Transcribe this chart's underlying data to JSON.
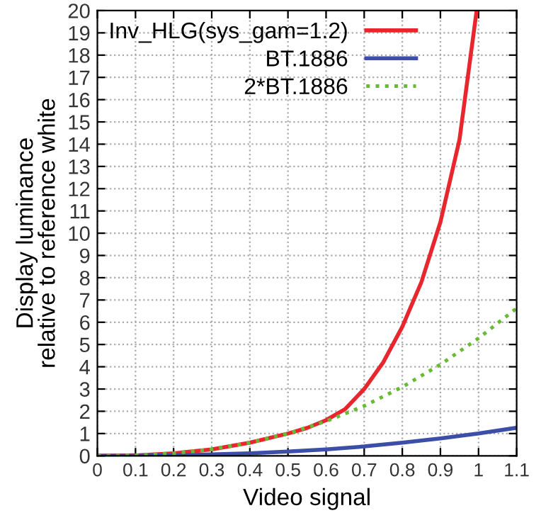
{
  "chart_data": {
    "type": "line",
    "xlabel": "Video signal",
    "ylabel": "Display luminance\nrelative to reference white",
    "xlim": [
      0,
      1.1
    ],
    "ylim": [
      0,
      20
    ],
    "xticks": [
      0,
      0.1,
      0.2,
      0.3,
      0.4,
      0.5,
      0.6,
      0.7,
      0.8,
      0.9,
      1,
      1.1
    ],
    "yticks": [
      0,
      1,
      2,
      3,
      4,
      5,
      6,
      7,
      8,
      9,
      10,
      11,
      12,
      13,
      14,
      15,
      16,
      17,
      18,
      19,
      20
    ],
    "grid": true,
    "legend": "top left",
    "marker": "none",
    "series": [
      {
        "name": "Inv_HLG(sys_gam=1.2)",
        "color": "#e8262d",
        "line_style": "solid",
        "x": [
          0,
          0.1,
          0.2,
          0.3,
          0.4,
          0.5,
          0.55,
          0.6,
          0.65,
          0.7,
          0.75,
          0.8,
          0.85,
          0.9,
          0.95,
          0.995
        ],
        "values": [
          0,
          0.02,
          0.11,
          0.29,
          0.59,
          1,
          1.25,
          1.6,
          2.1,
          3.0,
          4.2,
          5.8,
          7.8,
          10.5,
          14.2,
          20
        ]
      },
      {
        "name": "BT.1886",
        "color": "#3c4ea8",
        "line_style": "solid",
        "x": [
          0,
          0.1,
          0.2,
          0.3,
          0.4,
          0.5,
          0.6,
          0.7,
          0.8,
          0.9,
          1,
          1.1
        ],
        "values": [
          0,
          0.004,
          0.02,
          0.06,
          0.11,
          0.19,
          0.29,
          0.42,
          0.59,
          0.78,
          1,
          1.26
        ]
      },
      {
        "name": "2*BT.1886",
        "color": "#66bb33",
        "line_style": "dotted",
        "x": [
          0,
          0.1,
          0.2,
          0.3,
          0.4,
          0.5,
          0.6,
          0.7,
          0.8,
          0.9,
          1,
          1.1
        ],
        "values": [
          0,
          0.02,
          0.11,
          0.29,
          0.59,
          1,
          1.55,
          2.24,
          3.09,
          4.1,
          5.28,
          6.63
        ]
      }
    ]
  }
}
